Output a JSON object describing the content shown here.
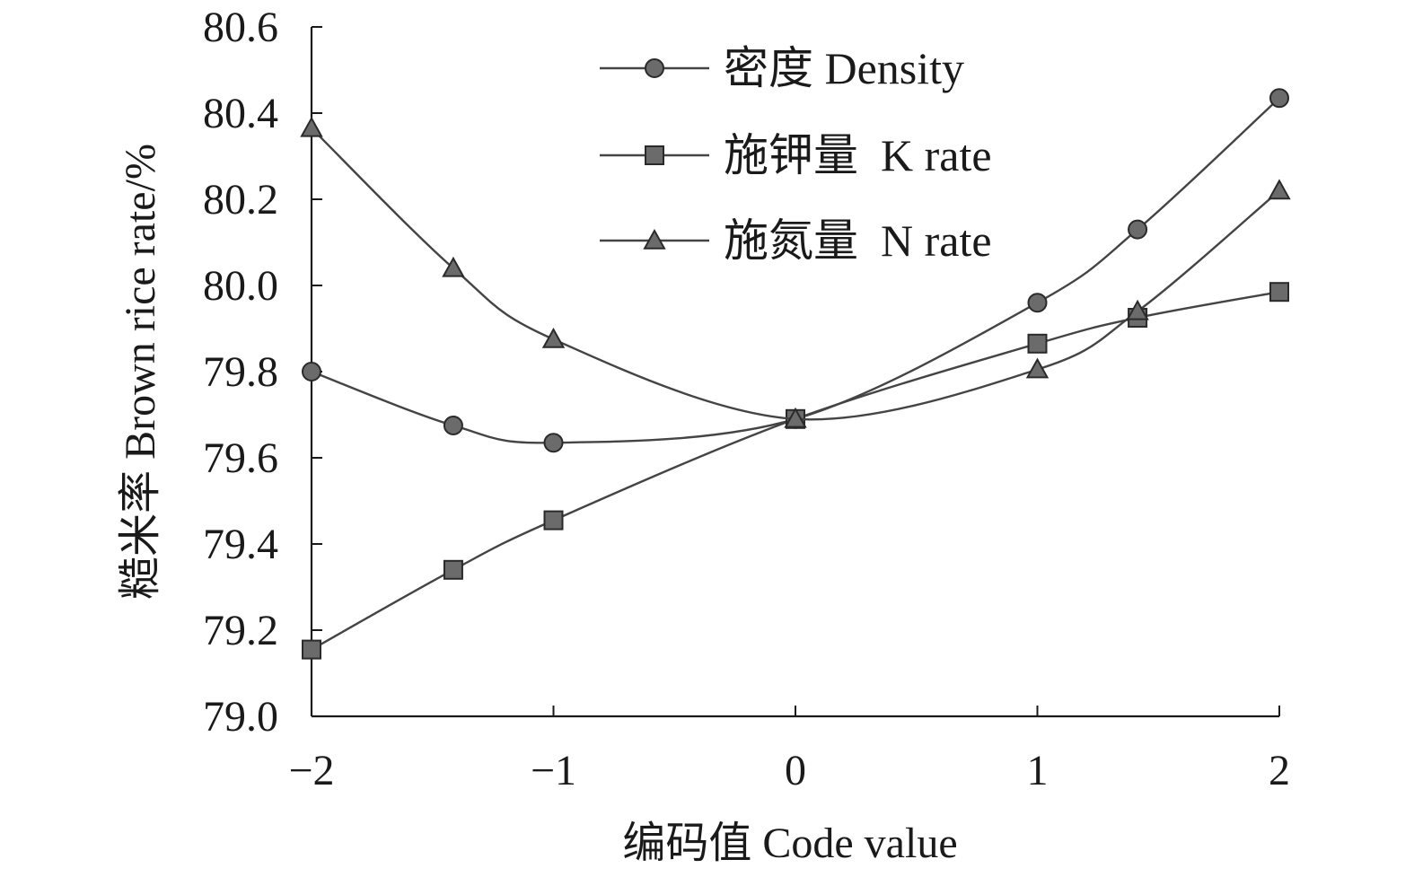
{
  "chart_data": {
    "type": "line",
    "xlabel": "编码值 Code value",
    "ylabel": "糙米率 Brown rice rate/%",
    "xlim": [
      -2,
      2
    ],
    "ylim": [
      79.0,
      80.6
    ],
    "xticks": [
      -2,
      -1,
      0,
      1,
      2
    ],
    "xtick_labels": [
      "−2",
      "−1",
      "0",
      "1",
      "2"
    ],
    "yticks": [
      79.0,
      79.2,
      79.4,
      79.6,
      79.8,
      80.0,
      80.2,
      80.4,
      80.6
    ],
    "ytick_labels": [
      "79.0",
      "79.2",
      "79.4",
      "79.6",
      "79.8",
      "80.0",
      "80.2",
      "80.4",
      "80.6"
    ],
    "grid": false,
    "legend_position": "top-center",
    "series": [
      {
        "name": "密度 Density",
        "marker": "circle",
        "x": [
          -2,
          -1.414,
          -1,
          0,
          1,
          1.414,
          2
        ],
        "y": [
          79.8,
          79.675,
          79.635,
          79.69,
          79.96,
          80.13,
          80.435
        ]
      },
      {
        "name": "施钾量  K rate",
        "marker": "square",
        "x": [
          -2,
          -1.414,
          -1,
          0,
          1,
          1.414,
          2
        ],
        "y": [
          79.155,
          79.34,
          79.455,
          79.69,
          79.865,
          79.925,
          79.985
        ]
      },
      {
        "name": "施氮量  N rate",
        "marker": "triangle",
        "x": [
          -2,
          -1.414,
          -1,
          0,
          1,
          1.414,
          2
        ],
        "y": [
          80.365,
          80.04,
          79.875,
          79.69,
          79.805,
          79.94,
          80.22
        ]
      }
    ],
    "colors": {
      "line": "#444444",
      "marker_fill": "#6b6b6b",
      "marker_stroke": "#2a2a2a",
      "axis": "#1a1a1a"
    }
  }
}
